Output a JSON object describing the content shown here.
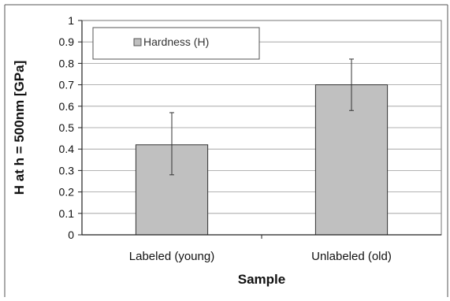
{
  "chart_data": {
    "type": "bar",
    "categories": [
      "Labeled (young)",
      "Unlabeled (old)"
    ],
    "series": [
      {
        "name": "Hardness (H)",
        "values": [
          0.42,
          0.7
        ],
        "error_low": [
          0.28,
          0.58
        ],
        "error_high": [
          0.57,
          0.82
        ],
        "color": "#c0c0c0"
      }
    ],
    "xlabel": "Sample",
    "ylabel": "H at h = 500nm [GPa]",
    "ylim": [
      0,
      1
    ],
    "yticks": [
      "0",
      "0.1",
      "0.2",
      "0.3",
      "0.4",
      "0.5",
      "0.6",
      "0.7",
      "0.8",
      "0.9",
      "1"
    ],
    "grid": true,
    "legend_position": "top-left"
  }
}
